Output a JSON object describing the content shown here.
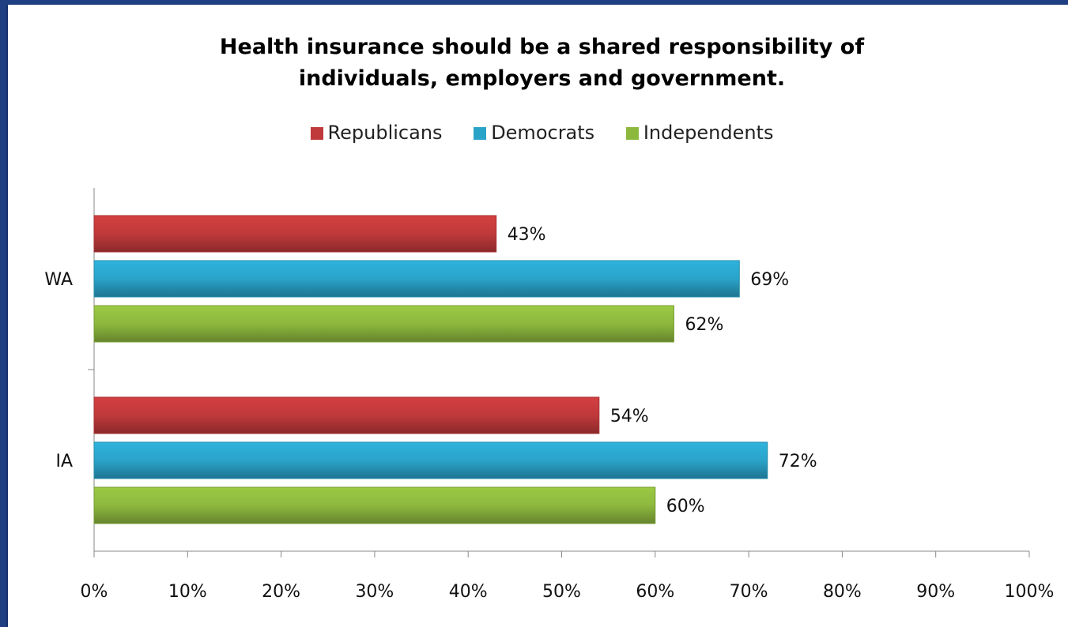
{
  "chart_data": {
    "type": "bar",
    "orientation": "horizontal",
    "title_lines": [
      "Health insurance should be a shared responsibility of",
      "individuals, employers and government."
    ],
    "categories": [
      "WA",
      "IA"
    ],
    "series": [
      {
        "name": "Republicans",
        "color": "#c0393b",
        "values": [
          43,
          54
        ],
        "labels": [
          "43%",
          "54%"
        ]
      },
      {
        "name": "Democrats",
        "color": "#2aa3c9",
        "values": [
          69,
          72
        ],
        "labels": [
          "69%",
          "72%"
        ]
      },
      {
        "name": "Independents",
        "color": "#8db83e",
        "values": [
          62,
          60
        ],
        "labels": [
          "62%",
          "60%"
        ]
      }
    ],
    "xlim": [
      0,
      100
    ],
    "xticks": [
      0,
      10,
      20,
      30,
      40,
      50,
      60,
      70,
      80,
      90,
      100
    ],
    "xtick_labels": [
      "0%",
      "10%",
      "20%",
      "30%",
      "40%",
      "50%",
      "60%",
      "70%",
      "80%",
      "90%",
      "100%"
    ],
    "grid": false,
    "legend_position": "top"
  }
}
